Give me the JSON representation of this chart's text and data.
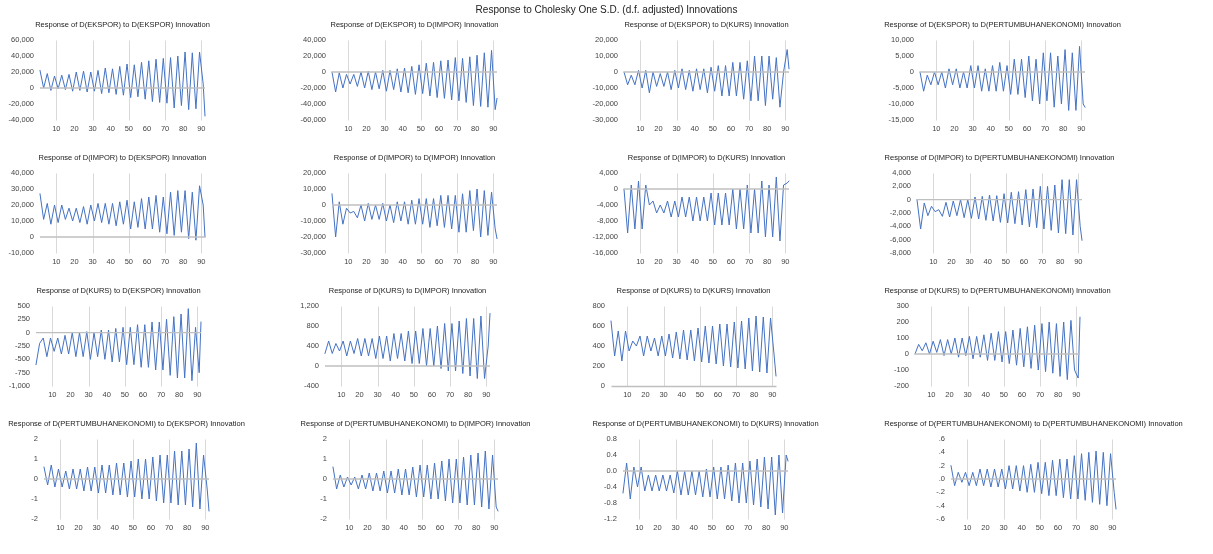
{
  "chart_data": [
    {
      "type": "line",
      "title": "Response of D(EKSPOR) to D(EKSPOR) Innovation",
      "annotations": [
        "Response to Cholesky One S.D. (d.f. adjusted) Innovations"
      ],
      "color": "#4472c4",
      "grid": "x",
      "ref_lines": [
        {
          "axis": "y",
          "value": 0,
          "color": "#bfbfbf"
        }
      ],
      "xlim": [
        1,
        92
      ],
      "xticks": [
        10,
        20,
        30,
        40,
        50,
        60,
        70,
        80,
        90
      ],
      "ylim": [
        -40000,
        60000
      ],
      "yticks": [
        {
          "value": -40000,
          "label": "-40,000"
        },
        {
          "value": -20000,
          "label": "-20,000"
        },
        0,
        {
          "value": 20000,
          "label": "20,000"
        },
        {
          "value": 40000,
          "label": "40,000"
        },
        {
          "value": 60000,
          "label": "60,000"
        }
      ],
      "x": [
        1,
        3,
        5,
        7,
        9,
        11,
        13,
        15,
        17,
        19,
        21,
        23,
        25,
        27,
        29,
        31,
        33,
        35,
        37,
        39,
        41,
        43,
        45,
        47,
        49,
        51,
        53,
        55,
        57,
        59,
        61,
        63,
        65,
        67,
        69,
        71,
        73,
        75,
        77,
        79,
        81,
        83,
        85,
        87,
        89,
        91,
        92
      ],
      "values": [
        22000,
        0,
        18000,
        -3000,
        15000,
        -1000,
        16000,
        -2000,
        17000,
        -4000,
        20000,
        -3000,
        21000,
        -5000,
        20000,
        -4000,
        22000,
        -7000,
        25000,
        -6000,
        24000,
        -8000,
        27000,
        -9000,
        30000,
        -12000,
        29000,
        -11000,
        32000,
        -14000,
        34000,
        -17000,
        36000,
        -18000,
        37000,
        -19000,
        38000,
        -25000,
        40000,
        -22000,
        45000,
        -27000,
        44000,
        -26000,
        45000,
        5000,
        -35000
      ]
    },
    {
      "type": "line",
      "title": "Response of D(EKSPOR) to D(IMPOR) Innovation",
      "color": "#4472c4",
      "grid": "x",
      "ref_lines": [
        {
          "axis": "y",
          "value": 0,
          "color": "#bfbfbf"
        }
      ],
      "xlim": [
        1,
        92
      ],
      "xticks": [
        10,
        20,
        30,
        40,
        50,
        60,
        70,
        80,
        90
      ],
      "ylim": [
        -60000,
        40000
      ],
      "yticks": [
        {
          "value": -60000,
          "label": "-60,000"
        },
        {
          "value": -40000,
          "label": "-40,000"
        },
        {
          "value": -20000,
          "label": "-20,000"
        },
        0,
        {
          "value": 20000,
          "label": "20,000"
        },
        {
          "value": 40000,
          "label": "40,000"
        }
      ],
      "x": [
        1,
        3,
        5,
        7,
        9,
        11,
        13,
        15,
        17,
        19,
        21,
        23,
        25,
        27,
        29,
        31,
        33,
        35,
        37,
        39,
        41,
        43,
        45,
        47,
        49,
        51,
        53,
        55,
        57,
        59,
        61,
        63,
        65,
        67,
        69,
        71,
        73,
        75,
        77,
        79,
        81,
        83,
        85,
        87,
        89,
        91,
        92
      ],
      "values": [
        0,
        -25000,
        -1000,
        -20000,
        -3000,
        -15000,
        -3000,
        -18000,
        0,
        -20000,
        1000,
        -22000,
        0,
        -21000,
        2000,
        -24000,
        2000,
        -22000,
        4000,
        -25000,
        5000,
        -26000,
        7000,
        -28000,
        9000,
        -27000,
        11000,
        -30000,
        12000,
        -32000,
        14000,
        -33000,
        15000,
        -35000,
        18000,
        -36000,
        17000,
        -38000,
        19000,
        -42000,
        21000,
        -43000,
        24000,
        -44000,
        27000,
        -47000,
        -33000
      ]
    },
    {
      "type": "line",
      "title": "Response of D(EKSPOR) to D(KURS) Innovation",
      "color": "#4472c4",
      "grid": "x",
      "ref_lines": [
        {
          "axis": "y",
          "value": 0,
          "color": "#bfbfbf"
        }
      ],
      "xlim": [
        1,
        92
      ],
      "xticks": [
        10,
        20,
        30,
        40,
        50,
        60,
        70,
        80,
        90
      ],
      "ylim": [
        -30000,
        20000
      ],
      "yticks": [
        {
          "value": -30000,
          "label": "-30,000"
        },
        {
          "value": -20000,
          "label": "-20,000"
        },
        {
          "value": -10000,
          "label": "-10,000"
        },
        0,
        {
          "value": 10000,
          "label": "10,000"
        },
        {
          "value": 20000,
          "label": "20,000"
        }
      ],
      "x": [
        1,
        3,
        5,
        7,
        9,
        11,
        13,
        15,
        17,
        19,
        21,
        23,
        25,
        27,
        29,
        31,
        33,
        35,
        37,
        39,
        41,
        43,
        45,
        47,
        49,
        51,
        53,
        55,
        57,
        59,
        61,
        63,
        65,
        67,
        69,
        71,
        73,
        75,
        77,
        79,
        81,
        83,
        85,
        87,
        89,
        91,
        92
      ],
      "values": [
        0,
        -8000,
        -2000,
        -8000,
        1000,
        -10000,
        1000,
        -13000,
        0,
        -9000,
        -1000,
        -9000,
        0,
        -11000,
        1000,
        -10000,
        2000,
        -11000,
        1000,
        -12000,
        2000,
        -11000,
        2000,
        -13000,
        3000,
        -12000,
        4000,
        -15000,
        4000,
        -15000,
        6000,
        -15000,
        6000,
        -17000,
        7000,
        -18000,
        10000,
        -18000,
        10000,
        -21000,
        10000,
        -17000,
        9000,
        -22000,
        0,
        14000,
        2000
      ]
    },
    {
      "type": "line",
      "title": "Response of D(EKSPOR) to D(PERTUMBUHANEKONOMI) Innovation",
      "color": "#4472c4",
      "grid": "x",
      "ref_lines": [
        {
          "axis": "y",
          "value": 0,
          "color": "#bfbfbf"
        }
      ],
      "xlim": [
        1,
        92
      ],
      "xticks": [
        10,
        20,
        30,
        40,
        50,
        60,
        70,
        80,
        90
      ],
      "ylim": [
        -15000,
        10000
      ],
      "yticks": [
        {
          "value": -15000,
          "label": "-15,000"
        },
        {
          "value": -10000,
          "label": "-10,000"
        },
        {
          "value": -5000,
          "label": "-5,000"
        },
        0,
        {
          "value": 5000,
          "label": "5,000"
        },
        {
          "value": 10000,
          "label": "10,000"
        }
      ],
      "x": [
        1,
        3,
        5,
        7,
        9,
        11,
        13,
        15,
        17,
        19,
        21,
        23,
        25,
        27,
        29,
        31,
        33,
        35,
        37,
        39,
        41,
        43,
        45,
        47,
        49,
        51,
        53,
        55,
        57,
        59,
        61,
        63,
        65,
        67,
        69,
        71,
        73,
        75,
        77,
        79,
        81,
        83,
        85,
        87,
        89,
        91,
        92
      ],
      "values": [
        0,
        -6000,
        -1000,
        -4000,
        0,
        -4000,
        0,
        -5000,
        1000,
        -4000,
        1000,
        -5000,
        0,
        -5000,
        2000,
        -5000,
        2000,
        -6000,
        1000,
        -6000,
        2000,
        -6000,
        3000,
        -6000,
        2000,
        -7000,
        4000,
        -7000,
        4000,
        -8000,
        5000,
        -9000,
        4000,
        -10000,
        6000,
        -9000,
        6000,
        -11000,
        5000,
        -10000,
        7000,
        -12000,
        6000,
        -12000,
        8000,
        -10000,
        -11000
      ]
    },
    {
      "type": "line",
      "title": "Response of D(IMPOR) to D(EKSPOR) Innovation",
      "color": "#4472c4",
      "grid": "x",
      "ref_lines": [
        {
          "axis": "y",
          "value": 0,
          "color": "#bfbfbf"
        }
      ],
      "xlim": [
        1,
        92
      ],
      "xticks": [
        10,
        20,
        30,
        40,
        50,
        60,
        70,
        80,
        90
      ],
      "ylim": [
        -10000,
        40000
      ],
      "yticks": [
        {
          "value": -10000,
          "label": "-10,000"
        },
        0,
        {
          "value": 10000,
          "label": "10,000"
        },
        {
          "value": 20000,
          "label": "20,000"
        },
        {
          "value": 30000,
          "label": "30,000"
        },
        {
          "value": 40000,
          "label": "40,000"
        }
      ],
      "x": [
        1,
        3,
        5,
        7,
        9,
        11,
        13,
        15,
        17,
        19,
        21,
        23,
        25,
        27,
        29,
        31,
        33,
        35,
        37,
        39,
        41,
        43,
        45,
        47,
        49,
        51,
        53,
        55,
        57,
        59,
        61,
        63,
        65,
        67,
        69,
        71,
        73,
        75,
        77,
        79,
        81,
        83,
        85,
        87,
        89,
        91,
        92
      ],
      "values": [
        27000,
        11000,
        21000,
        8000,
        20000,
        9000,
        20000,
        11000,
        18000,
        10000,
        18000,
        9000,
        19000,
        8000,
        20000,
        10000,
        21000,
        9000,
        21000,
        8000,
        21000,
        7000,
        22000,
        8000,
        23000,
        5000,
        22000,
        6000,
        24000,
        5000,
        25000,
        5000,
        26000,
        3000,
        25000,
        2000,
        28000,
        1000,
        29000,
        3000,
        29000,
        -1000,
        28000,
        -2000,
        32000,
        20000,
        0
      ]
    },
    {
      "type": "line",
      "title": "Response of D(IMPOR) to D(IMPOR) Innovation",
      "color": "#4472c4",
      "grid": "x",
      "ref_lines": [
        {
          "axis": "y",
          "value": 0,
          "color": "#bfbfbf"
        }
      ],
      "xlim": [
        1,
        92
      ],
      "xticks": [
        10,
        20,
        30,
        40,
        50,
        60,
        70,
        80,
        90
      ],
      "ylim": [
        -30000,
        20000
      ],
      "yticks": [
        {
          "value": -30000,
          "label": "-30,000"
        },
        {
          "value": -20000,
          "label": "-20,000"
        },
        {
          "value": -10000,
          "label": "-10,000"
        },
        0,
        {
          "value": 10000,
          "label": "10,000"
        },
        {
          "value": 20000,
          "label": "20,000"
        }
      ],
      "x": [
        1,
        3,
        5,
        7,
        9,
        11,
        13,
        15,
        17,
        19,
        21,
        23,
        25,
        27,
        29,
        31,
        33,
        35,
        37,
        39,
        41,
        43,
        45,
        47,
        49,
        51,
        53,
        55,
        57,
        59,
        61,
        63,
        65,
        67,
        69,
        71,
        73,
        75,
        77,
        79,
        81,
        83,
        85,
        87,
        89,
        91,
        92
      ],
      "values": [
        7000,
        -20000,
        2000,
        -12000,
        -2000,
        -5000,
        -4000,
        -8000,
        0,
        -10000,
        1000,
        -9000,
        0,
        -9000,
        1000,
        -10000,
        0,
        -11000,
        2000,
        -10000,
        2000,
        -12000,
        3000,
        -12000,
        4000,
        -12000,
        4000,
        -14000,
        4000,
        -13000,
        6000,
        -14000,
        6000,
        -15000,
        6000,
        -17000,
        7000,
        -17000,
        9000,
        -16000,
        10000,
        -20000,
        9000,
        -19000,
        8000,
        -15000,
        -21000
      ]
    },
    {
      "type": "line",
      "title": "Response of D(IMPOR) to D(KURS) Innovation",
      "color": "#4472c4",
      "grid": "x",
      "ref_lines": [
        {
          "axis": "y",
          "value": 0,
          "color": "#bfbfbf"
        }
      ],
      "xlim": [
        1,
        92
      ],
      "xticks": [
        10,
        20,
        30,
        40,
        50,
        60,
        70,
        80,
        90
      ],
      "ylim": [
        -16000,
        4000
      ],
      "yticks": [
        {
          "value": -16000,
          "label": "-16,000"
        },
        {
          "value": -12000,
          "label": "-12,000"
        },
        {
          "value": -8000,
          "label": "-8,000"
        },
        {
          "value": -4000,
          "label": "-4,000"
        },
        0,
        {
          "value": 4000,
          "label": "4,000"
        }
      ],
      "x": [
        1,
        3,
        5,
        7,
        9,
        11,
        13,
        15,
        17,
        19,
        21,
        23,
        25,
        27,
        29,
        31,
        33,
        35,
        37,
        39,
        41,
        43,
        45,
        47,
        49,
        51,
        53,
        55,
        57,
        59,
        61,
        63,
        65,
        67,
        69,
        71,
        73,
        75,
        77,
        79,
        81,
        83,
        85,
        87,
        89,
        91,
        92
      ],
      "values": [
        0,
        -11000,
        1000,
        -10000,
        2000,
        -10000,
        1000,
        -4000,
        -3000,
        -6000,
        -4000,
        -6000,
        -3000,
        -7000,
        -3000,
        -7000,
        -2000,
        -7000,
        -2000,
        -8000,
        -2000,
        -8000,
        -2000,
        -8000,
        -1000,
        -9000,
        -1000,
        -9000,
        -1000,
        -9000,
        0,
        -10000,
        0,
        -10000,
        1000,
        -11000,
        0,
        -11000,
        2000,
        -12000,
        1000,
        -12000,
        3000,
        -13000,
        1000,
        1500,
        2000
      ]
    },
    {
      "type": "line",
      "title": "Response of D(IMPOR) to D(PERTUMBUHANEKONOMI) Innovation",
      "color": "#4472c4",
      "grid": "x",
      "ref_lines": [
        {
          "axis": "y",
          "value": 0,
          "color": "#bfbfbf"
        }
      ],
      "xlim": [
        1,
        92
      ],
      "xticks": [
        10,
        20,
        30,
        40,
        50,
        60,
        70,
        80,
        90
      ],
      "ylim": [
        -8000,
        4000
      ],
      "yticks": [
        {
          "value": -8000,
          "label": "-8,000"
        },
        {
          "value": -6000,
          "label": "-6,000"
        },
        {
          "value": -4000,
          "label": "-4,000"
        },
        {
          "value": -2000,
          "label": "-2,000"
        },
        0,
        {
          "value": 2000,
          "label": "2,000"
        },
        {
          "value": 4000,
          "label": "4,000"
        }
      ],
      "x": [
        1,
        3,
        5,
        7,
        9,
        11,
        13,
        15,
        17,
        19,
        21,
        23,
        25,
        27,
        29,
        31,
        33,
        35,
        37,
        39,
        41,
        43,
        45,
        47,
        49,
        51,
        53,
        55,
        57,
        59,
        61,
        63,
        65,
        67,
        69,
        71,
        73,
        75,
        77,
        79,
        81,
        83,
        85,
        87,
        89,
        91,
        92
      ],
      "values": [
        0,
        -4400,
        -500,
        -2400,
        -1000,
        -1800,
        -1500,
        -2500,
        -400,
        -2600,
        -200,
        -2400,
        0,
        -2700,
        0,
        -2800,
        400,
        -2900,
        500,
        -3100,
        700,
        -3200,
        600,
        -3400,
        900,
        -3500,
        1100,
        -3600,
        1200,
        -3800,
        1500,
        -4100,
        1600,
        -4200,
        2000,
        -4400,
        2000,
        -4600,
        2200,
        -5000,
        3000,
        -5100,
        3000,
        -5300,
        3000,
        -4000,
        -6100
      ]
    },
    {
      "type": "line",
      "title": "Response of D(KURS) to D(EKSPOR) Innovation",
      "color": "#4472c4",
      "grid": "x",
      "ref_lines": [
        {
          "axis": "y",
          "value": 0,
          "color": "#bfbfbf"
        }
      ],
      "xlim": [
        1,
        92
      ],
      "xticks": [
        10,
        20,
        30,
        40,
        50,
        60,
        70,
        80,
        90
      ],
      "ylim": [
        -1000,
        500
      ],
      "yticks": [
        {
          "value": -1000,
          "label": "-1,000"
        },
        -750,
        -500,
        -250,
        0,
        250,
        500
      ],
      "x": [
        1,
        3,
        5,
        7,
        9,
        11,
        13,
        15,
        17,
        19,
        21,
        23,
        25,
        27,
        29,
        31,
        33,
        35,
        37,
        39,
        41,
        43,
        45,
        47,
        49,
        51,
        53,
        55,
        57,
        59,
        61,
        63,
        65,
        67,
        69,
        71,
        73,
        75,
        77,
        79,
        81,
        83,
        85,
        87,
        89,
        91,
        92
      ],
      "values": [
        -600,
        -200,
        -100,
        -450,
        -100,
        -350,
        -100,
        -400,
        -50,
        -400,
        0,
        -450,
        0,
        -450,
        20,
        -500,
        0,
        -450,
        50,
        -500,
        50,
        -550,
        80,
        -550,
        100,
        -600,
        100,
        -600,
        150,
        -650,
        150,
        -650,
        200,
        -700,
        200,
        -700,
        250,
        -800,
        300,
        -850,
        350,
        -850,
        450,
        -900,
        100,
        -750,
        200
      ]
    },
    {
      "type": "line",
      "title": "Response of D(KURS) to D(IMPOR) Innovation",
      "color": "#4472c4",
      "grid": "x",
      "ref_lines": [
        {
          "axis": "y",
          "value": 0,
          "color": "#bfbfbf"
        }
      ],
      "xlim": [
        1,
        92
      ],
      "xticks": [
        10,
        20,
        30,
        40,
        50,
        60,
        70,
        80,
        90
      ],
      "ylim": [
        -400,
        1200
      ],
      "yticks": [
        -400,
        0,
        400,
        800,
        {
          "value": 1200,
          "label": "1,200"
        }
      ],
      "x": [
        1,
        3,
        5,
        7,
        9,
        11,
        13,
        15,
        17,
        19,
        21,
        23,
        25,
        27,
        29,
        31,
        33,
        35,
        37,
        39,
        41,
        43,
        45,
        47,
        49,
        51,
        53,
        55,
        57,
        59,
        61,
        63,
        65,
        67,
        69,
        71,
        73,
        75,
        77,
        79,
        81,
        83,
        85,
        87,
        89,
        91,
        92
      ],
      "values": [
        250,
        500,
        250,
        450,
        300,
        500,
        200,
        500,
        250,
        550,
        200,
        550,
        200,
        550,
        150,
        600,
        150,
        600,
        100,
        650,
        150,
        650,
        100,
        700,
        50,
        700,
        50,
        750,
        0,
        750,
        0,
        800,
        -50,
        850,
        -100,
        850,
        -100,
        900,
        -150,
        950,
        -200,
        950,
        -250,
        1000,
        -250,
        400,
        1050
      ]
    },
    {
      "type": "line",
      "title": "Response of D(KURS) to D(KURS) Innovation",
      "color": "#4472c4",
      "grid": "x",
      "xlim": [
        1,
        92
      ],
      "xticks": [
        10,
        20,
        30,
        40,
        50,
        60,
        70,
        80,
        90
      ],
      "ylim": [
        0,
        800
      ],
      "yticks": [
        0,
        200,
        400,
        600,
        800
      ],
      "x": [
        1,
        3,
        5,
        7,
        9,
        11,
        13,
        15,
        17,
        19,
        21,
        23,
        25,
        27,
        29,
        31,
        33,
        35,
        37,
        39,
        41,
        43,
        45,
        47,
        49,
        51,
        53,
        55,
        57,
        59,
        61,
        63,
        65,
        67,
        69,
        71,
        73,
        75,
        77,
        79,
        81,
        83,
        85,
        87,
        89,
        91,
        92
      ],
      "values": [
        650,
        300,
        550,
        250,
        550,
        350,
        450,
        400,
        500,
        300,
        500,
        350,
        480,
        300,
        500,
        300,
        520,
        280,
        540,
        270,
        560,
        260,
        560,
        250,
        580,
        240,
        600,
        230,
        600,
        220,
        620,
        200,
        620,
        190,
        640,
        180,
        650,
        170,
        680,
        150,
        700,
        140,
        690,
        130,
        680,
        300,
        100
      ]
    },
    {
      "type": "line",
      "title": "Response of D(KURS) to D(PERTUMBUHANEKONOMI) Innovation",
      "color": "#4472c4",
      "grid": "x",
      "ref_lines": [
        {
          "axis": "y",
          "value": 0,
          "color": "#bfbfbf"
        }
      ],
      "xlim": [
        1,
        92
      ],
      "xticks": [
        10,
        20,
        30,
        40,
        50,
        60,
        70,
        80,
        90
      ],
      "ylim": [
        -200,
        300
      ],
      "yticks": [
        -200,
        -100,
        0,
        100,
        200,
        300
      ],
      "x": [
        1,
        3,
        5,
        7,
        9,
        11,
        13,
        15,
        17,
        19,
        21,
        23,
        25,
        27,
        29,
        31,
        33,
        35,
        37,
        39,
        41,
        43,
        45,
        47,
        49,
        51,
        53,
        55,
        57,
        59,
        61,
        63,
        65,
        67,
        69,
        71,
        73,
        75,
        77,
        79,
        81,
        83,
        85,
        87,
        89,
        91,
        92
      ],
      "values": [
        0,
        60,
        20,
        70,
        0,
        80,
        10,
        90,
        -10,
        90,
        0,
        100,
        -20,
        100,
        -10,
        110,
        -30,
        110,
        -20,
        120,
        -40,
        130,
        -40,
        140,
        -50,
        140,
        -60,
        150,
        -70,
        160,
        -80,
        170,
        -90,
        180,
        -100,
        190,
        -110,
        200,
        -120,
        190,
        -140,
        200,
        -160,
        210,
        -100,
        -150,
        230
      ]
    },
    {
      "type": "line",
      "title": "Response of D(PERTUMBUHANEKONOMI) to D(EKSPOR) Innovation",
      "color": "#4472c4",
      "grid": "x",
      "ref_lines": [
        {
          "axis": "y",
          "value": 0,
          "color": "#bfbfbf"
        }
      ],
      "xlim": [
        1,
        92
      ],
      "xticks": [
        10,
        20,
        30,
        40,
        50,
        60,
        70,
        80,
        90
      ],
      "ylim": [
        -2,
        2
      ],
      "yticks": [
        -2,
        -1,
        0,
        1,
        2
      ],
      "x": [
        1,
        3,
        5,
        7,
        9,
        11,
        13,
        15,
        17,
        19,
        21,
        23,
        25,
        27,
        29,
        31,
        33,
        35,
        37,
        39,
        41,
        43,
        45,
        47,
        49,
        51,
        53,
        55,
        57,
        59,
        61,
        63,
        65,
        67,
        69,
        71,
        73,
        75,
        77,
        79,
        81,
        83,
        85,
        87,
        89,
        91,
        92
      ],
      "values": [
        0.6,
        -0.3,
        0.7,
        -0.4,
        0.5,
        -0.4,
        0.4,
        -0.5,
        0.5,
        -0.5,
        0.5,
        -0.6,
        0.6,
        -0.6,
        0.6,
        -0.7,
        0.7,
        -0.7,
        0.7,
        -0.8,
        0.8,
        -0.8,
        0.8,
        -0.9,
        0.9,
        -0.9,
        1,
        -1,
        1,
        -1,
        1.1,
        -1.1,
        1.2,
        -1.2,
        1.2,
        -1.2,
        1.4,
        -1.3,
        1.4,
        -1.3,
        1.5,
        -1.4,
        1.8,
        -1.5,
        1.2,
        -0.5,
        -1.6
      ]
    },
    {
      "type": "line",
      "title": "Response of D(PERTUMBUHANEKONOMI) to D(IMPOR) Innovation",
      "color": "#4472c4",
      "grid": "x",
      "ref_lines": [
        {
          "axis": "y",
          "value": 0,
          "color": "#bfbfbf"
        }
      ],
      "xlim": [
        1,
        92
      ],
      "xticks": [
        10,
        20,
        30,
        40,
        50,
        60,
        70,
        80,
        90
      ],
      "ylim": [
        -2,
        2
      ],
      "yticks": [
        -2,
        -1,
        0,
        1,
        2
      ],
      "x": [
        1,
        3,
        5,
        7,
        9,
        11,
        13,
        15,
        17,
        19,
        21,
        23,
        25,
        27,
        29,
        31,
        33,
        35,
        37,
        39,
        41,
        43,
        45,
        47,
        49,
        51,
        53,
        55,
        57,
        59,
        61,
        63,
        65,
        67,
        69,
        71,
        73,
        75,
        77,
        79,
        81,
        83,
        85,
        87,
        89,
        91,
        92
      ],
      "values": [
        0.6,
        -0.5,
        0.2,
        -0.4,
        0.1,
        -0.3,
        0.1,
        -0.5,
        0.2,
        -0.5,
        0.3,
        -0.6,
        0.3,
        -0.6,
        0.4,
        -0.7,
        0.4,
        -0.7,
        0.5,
        -0.8,
        0.5,
        -0.8,
        0.6,
        -0.9,
        0.7,
        -0.9,
        0.7,
        -1,
        0.8,
        -1,
        0.9,
        -1.1,
        1,
        -1.2,
        1,
        -1.2,
        1.1,
        -1.3,
        1.2,
        -1.3,
        1.3,
        -1.4,
        1.4,
        -1.5,
        1.2,
        -1.4,
        -1.6
      ]
    },
    {
      "type": "line",
      "title": "Response of D(PERTUMBUHANEKONOMI) to D(KURS) Innovation",
      "color": "#4472c4",
      "grid": "x",
      "ref_lines": [
        {
          "axis": "y",
          "value": 0,
          "color": "#bfbfbf"
        }
      ],
      "xlim": [
        1,
        92
      ],
      "xticks": [
        10,
        20,
        30,
        40,
        50,
        60,
        70,
        80,
        90
      ],
      "ylim": [
        -1.2,
        0.8
      ],
      "yticks": [
        -1.2,
        -0.8,
        -0.4,
        {
          "value": 0,
          "label": "0.0"
        },
        0.4,
        0.8
      ],
      "x": [
        1,
        3,
        5,
        7,
        9,
        11,
        13,
        15,
        17,
        19,
        21,
        23,
        25,
        27,
        29,
        31,
        33,
        35,
        37,
        39,
        41,
        43,
        45,
        47,
        49,
        51,
        53,
        55,
        57,
        59,
        61,
        63,
        65,
        67,
        69,
        71,
        73,
        75,
        77,
        79,
        81,
        83,
        85,
        87,
        89,
        91,
        92
      ],
      "values": [
        -0.55,
        0.2,
        -0.7,
        0.1,
        -0.4,
        0.1,
        -0.5,
        -0.1,
        -0.5,
        -0.1,
        -0.5,
        -0.1,
        -0.5,
        -0.1,
        -0.55,
        0,
        -0.6,
        0,
        -0.6,
        0,
        -0.6,
        0,
        -0.65,
        0.05,
        -0.65,
        0.1,
        -0.7,
        0.1,
        -0.7,
        0.15,
        -0.75,
        0.2,
        -0.8,
        0.2,
        -0.8,
        0.25,
        -0.85,
        0.3,
        -0.9,
        0.35,
        -0.95,
        0.35,
        -1.1,
        0.4,
        -1.05,
        0.4,
        0.25
      ]
    },
    {
      "type": "line",
      "title": "Response of D(PERTUMBUHANEKONOMI) to D(PERTUMBUHANEKONOMI) Innovation",
      "color": "#4472c4",
      "grid": "x",
      "ref_lines": [
        {
          "axis": "y",
          "value": 0,
          "color": "#bfbfbf"
        }
      ],
      "xlim": [
        1,
        92
      ],
      "xticks": [
        10,
        20,
        30,
        40,
        50,
        60,
        70,
        80,
        90
      ],
      "ylim": [
        -0.6,
        0.6
      ],
      "yticks": [
        {
          "value": -0.6,
          "label": "-.6"
        },
        {
          "value": -0.4,
          "label": "-.4"
        },
        {
          "value": -0.2,
          "label": "-.2"
        },
        {
          "value": 0,
          "label": ".0"
        },
        {
          "value": 0.2,
          "label": ".2"
        },
        {
          "value": 0.4,
          "label": ".4"
        },
        {
          "value": 0.6,
          "label": ".6"
        }
      ],
      "x": [
        1,
        3,
        5,
        7,
        9,
        11,
        13,
        15,
        17,
        19,
        21,
        23,
        25,
        27,
        29,
        31,
        33,
        35,
        37,
        39,
        41,
        43,
        45,
        47,
        49,
        51,
        53,
        55,
        57,
        59,
        61,
        63,
        65,
        67,
        69,
        71,
        73,
        75,
        77,
        79,
        81,
        83,
        85,
        87,
        89,
        91,
        92
      ],
      "values": [
        0.2,
        -0.1,
        0.1,
        -0.05,
        0.1,
        -0.1,
        0.1,
        -0.1,
        0.15,
        -0.1,
        0.15,
        -0.12,
        0.15,
        -0.12,
        0.15,
        -0.15,
        0.2,
        -0.15,
        0.2,
        -0.18,
        0.2,
        -0.2,
        0.22,
        -0.2,
        0.25,
        -0.22,
        0.25,
        -0.25,
        0.28,
        -0.25,
        0.3,
        -0.28,
        0.3,
        -0.3,
        0.35,
        -0.3,
        0.38,
        -0.32,
        0.4,
        -0.35,
        0.42,
        -0.38,
        0.4,
        -0.4,
        0.38,
        -0.2,
        -0.45
      ]
    }
  ]
}
